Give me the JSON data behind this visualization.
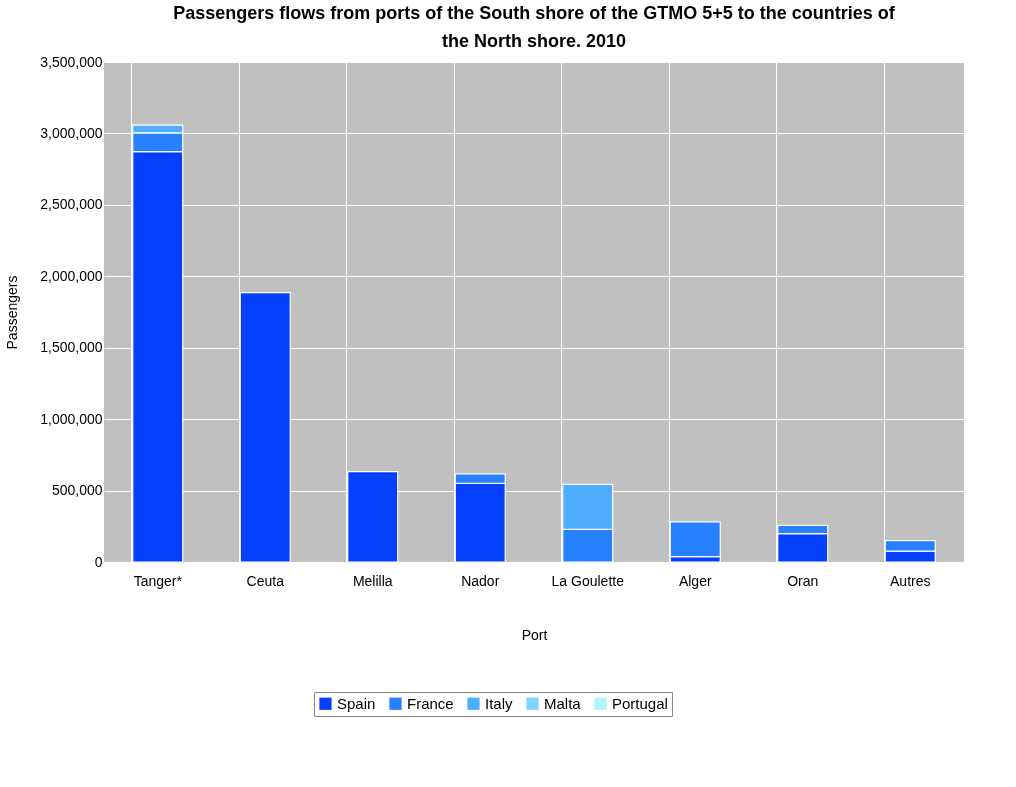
{
  "chart_data": {
    "type": "bar",
    "title": "Passengers flows from ports of the South shore of the GTMO 5+5 to the countries of the North shore. 2010",
    "xlabel": "Port",
    "ylabel": "Passengers",
    "categories": [
      "Tanger*",
      "Ceuta",
      "Melilla",
      "Nador",
      "La Goulette",
      "Alger",
      "Oran",
      "Autres"
    ],
    "stacked": true,
    "series": [
      {
        "name": "Spain",
        "color": "#0540ff",
        "values": [
          2872000,
          1885000,
          633000,
          551000,
          null,
          38000,
          199000,
          76000
        ]
      },
      {
        "name": "France",
        "color": "#2680ff",
        "values": [
          132000,
          null,
          null,
          66000,
          229000,
          243000,
          58000,
          74000
        ]
      },
      {
        "name": "Italy",
        "color": "#4fadff",
        "values": [
          54000,
          null,
          null,
          null,
          314000,
          null,
          null,
          null
        ]
      },
      {
        "name": "Malta",
        "color": "#80d4ff",
        "values": [
          null,
          null,
          null,
          null,
          null,
          null,
          null,
          null
        ]
      },
      {
        "name": "Portugal",
        "color": "#b0f4ff",
        "values": [
          null,
          null,
          null,
          null,
          null,
          null,
          null,
          null
        ]
      }
    ],
    "ylim": [
      0,
      3500000
    ],
    "yticks": [
      0,
      {
        "value": 500000,
        "label": "500,000"
      },
      {
        "value": 1000000,
        "label": "1,000,000"
      },
      {
        "value": 1500000,
        "label": "1,500,000"
      },
      {
        "value": 2000000,
        "label": "2,000,000"
      },
      {
        "value": 2500000,
        "label": "2,500,000"
      },
      {
        "value": 3000000,
        "label": "3,000,000"
      },
      {
        "value": 3500000,
        "label": "3,500,000"
      }
    ],
    "grid": true,
    "legend": "bottom"
  }
}
